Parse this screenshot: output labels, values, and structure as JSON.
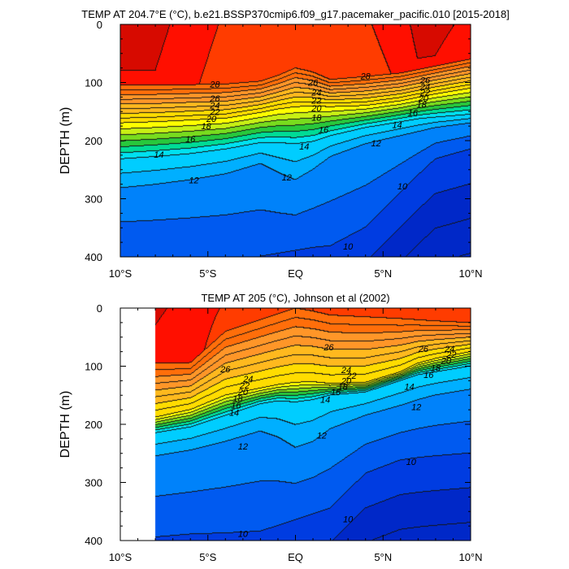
{
  "chart_data": [
    {
      "type": "contour",
      "title": "TEMP AT 204.7°E (°C), b.e21.BSSP370cmip6.f09_g17.pacemaker_pacific.010 [2015-2018]",
      "ylabel": "DEPTH (m)",
      "xlabel": "",
      "xlim": [
        -10,
        10
      ],
      "ylim": [
        400,
        0
      ],
      "x_ticks": [
        "10°S",
        "5°S",
        "EQ",
        "5°N",
        "10°N"
      ],
      "y_ticks": [
        "0",
        "100",
        "200",
        "300",
        "400"
      ],
      "contour_interval": 1,
      "value_range": [
        8,
        30
      ],
      "data_extent_x": [
        -10,
        10
      ],
      "contour_labels": [
        {
          "value": "28",
          "lat": -4.6,
          "depth": 103
        },
        {
          "value": "28",
          "lat": 4.0,
          "depth": 89
        },
        {
          "value": "26",
          "lat": -4.6,
          "depth": 127
        },
        {
          "value": "26",
          "lat": 1.0,
          "depth": 100
        },
        {
          "value": "26",
          "lat": 7.4,
          "depth": 96
        },
        {
          "value": "24",
          "lat": -4.6,
          "depth": 139
        },
        {
          "value": "24",
          "lat": 1.2,
          "depth": 117
        },
        {
          "value": "24",
          "lat": 7.4,
          "depth": 107
        },
        {
          "value": "22",
          "lat": -4.6,
          "depth": 150
        },
        {
          "value": "22",
          "lat": 1.2,
          "depth": 131
        },
        {
          "value": "22",
          "lat": 7.4,
          "depth": 117
        },
        {
          "value": "20",
          "lat": -4.8,
          "depth": 162
        },
        {
          "value": "20",
          "lat": 1.2,
          "depth": 144
        },
        {
          "value": "20",
          "lat": 7.3,
          "depth": 127
        },
        {
          "value": "18",
          "lat": -5.1,
          "depth": 175
        },
        {
          "value": "18",
          "lat": 1.2,
          "depth": 160
        },
        {
          "value": "18",
          "lat": 7.2,
          "depth": 138
        },
        {
          "value": "16",
          "lat": -6.0,
          "depth": 197
        },
        {
          "value": "16",
          "lat": 1.6,
          "depth": 181
        },
        {
          "value": "16",
          "lat": 6.7,
          "depth": 152
        },
        {
          "value": "14",
          "lat": -7.8,
          "depth": 224
        },
        {
          "value": "14",
          "lat": 0.5,
          "depth": 210
        },
        {
          "value": "14",
          "lat": 5.8,
          "depth": 173
        },
        {
          "value": "12",
          "lat": -5.8,
          "depth": 268
        },
        {
          "value": "12",
          "lat": -0.5,
          "depth": 263
        },
        {
          "value": "12",
          "lat": 4.6,
          "depth": 204
        },
        {
          "value": "10",
          "lat": 3.0,
          "depth": 382
        },
        {
          "value": "10",
          "lat": 6.1,
          "depth": 278
        }
      ]
    },
    {
      "type": "contour",
      "title": "TEMP AT 205 (°C), Johnson et al (2002)",
      "ylabel": "DEPTH (m)",
      "xlabel": "",
      "xlim": [
        -10,
        10
      ],
      "ylim": [
        400,
        0
      ],
      "x_ticks": [
        "10°S",
        "5°S",
        "EQ",
        "5°N",
        "10°N"
      ],
      "y_ticks": [
        "0",
        "100",
        "200",
        "300",
        "400"
      ],
      "contour_interval": 1,
      "value_range": [
        8,
        30
      ],
      "data_extent_x": [
        -8,
        10
      ],
      "contour_labels": [
        {
          "value": "26",
          "lat": -4.0,
          "depth": 105
        },
        {
          "value": "26",
          "lat": 1.9,
          "depth": 67
        },
        {
          "value": "26",
          "lat": 7.3,
          "depth": 70
        },
        {
          "value": "24",
          "lat": -2.7,
          "depth": 122
        },
        {
          "value": "24",
          "lat": 2.9,
          "depth": 106
        },
        {
          "value": "24",
          "lat": 8.8,
          "depth": 70
        },
        {
          "value": "22",
          "lat": -2.9,
          "depth": 133
        },
        {
          "value": "22",
          "lat": 3.2,
          "depth": 116
        },
        {
          "value": "22",
          "lat": 8.9,
          "depth": 80
        },
        {
          "value": "20",
          "lat": -3.0,
          "depth": 144
        },
        {
          "value": "20",
          "lat": 2.9,
          "depth": 125
        },
        {
          "value": "20",
          "lat": 8.6,
          "depth": 90
        },
        {
          "value": "18",
          "lat": -3.3,
          "depth": 155
        },
        {
          "value": "18",
          "lat": 2.7,
          "depth": 135
        },
        {
          "value": "18",
          "lat": 8.0,
          "depth": 103
        },
        {
          "value": "16",
          "lat": -3.4,
          "depth": 167
        },
        {
          "value": "16",
          "lat": 2.3,
          "depth": 144
        },
        {
          "value": "16",
          "lat": 7.6,
          "depth": 115
        },
        {
          "value": "14",
          "lat": -3.5,
          "depth": 180
        },
        {
          "value": "14",
          "lat": 1.7,
          "depth": 157
        },
        {
          "value": "14",
          "lat": 6.5,
          "depth": 135
        },
        {
          "value": "12",
          "lat": -3.0,
          "depth": 238
        },
        {
          "value": "12",
          "lat": 1.5,
          "depth": 219
        },
        {
          "value": "12",
          "lat": 6.9,
          "depth": 170
        },
        {
          "value": "10",
          "lat": 3.0,
          "depth": 363
        },
        {
          "value": "10",
          "lat": 6.6,
          "depth": 264
        },
        {
          "value": "10",
          "lat": -3.0,
          "depth": 388
        }
      ]
    }
  ]
}
